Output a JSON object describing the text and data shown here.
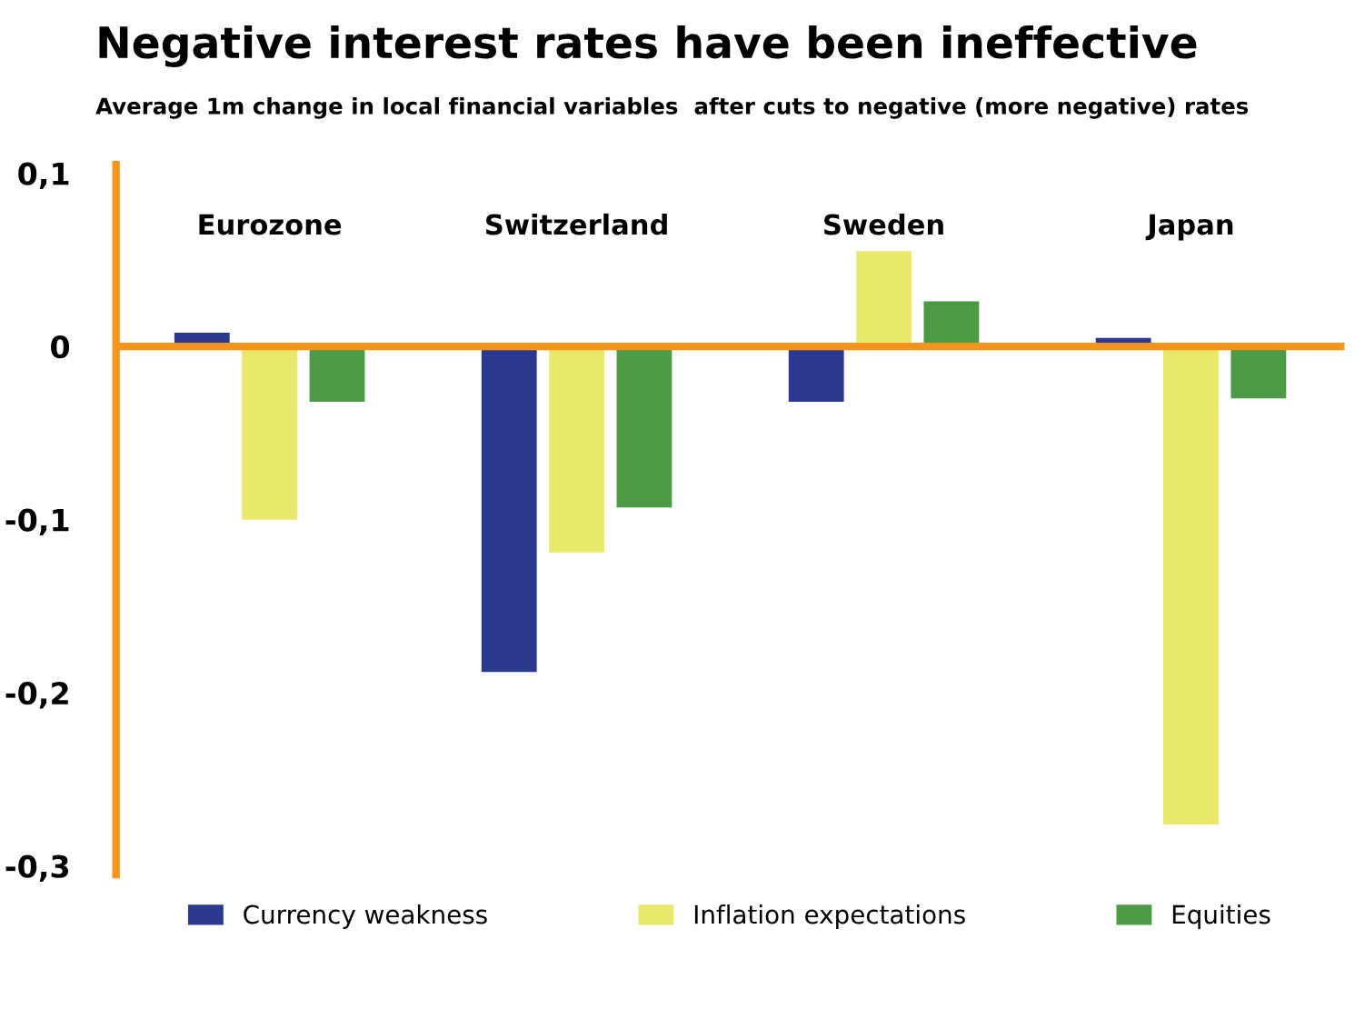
{
  "chart_data": {
    "type": "bar",
    "title": "Negative interest rates have been ineffective",
    "subtitle": "Average 1m change in local financial variables  after cuts to negative (more negative) rates",
    "categories": [
      "Eurozone",
      "Switzerland",
      "Sweden",
      "Japan"
    ],
    "series": [
      {
        "name": "Currency weakness",
        "color": "#2b3990",
        "values": [
          0.008,
          -0.188,
          -0.032,
          0.005
        ]
      },
      {
        "name": "Inflation expectations",
        "color": "#e8e86c",
        "values": [
          -0.1,
          -0.119,
          0.055,
          -0.276
        ]
      },
      {
        "name": "Equities",
        "color": "#4c9a45",
        "values": [
          -0.032,
          -0.093,
          0.026,
          -0.03
        ]
      }
    ],
    "ylim": [
      -0.305,
      0.105
    ],
    "yticks": [
      {
        "value": 0.1,
        "label": "0,1"
      },
      0,
      {
        "value": -0.1,
        "label": "-0,1"
      },
      {
        "value": -0.2,
        "label": "-0,2"
      },
      {
        "value": -0.3,
        "label": "-0,3"
      }
    ],
    "ref_lines": [
      {
        "axis": "y",
        "value": 0,
        "color": "#f7941d"
      }
    ],
    "grid": false,
    "legend": "bottom"
  }
}
